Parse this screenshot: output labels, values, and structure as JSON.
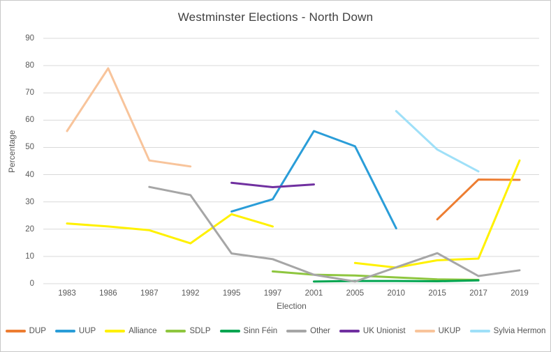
{
  "chart_data": {
    "type": "line",
    "title": "Westminster Elections - North Down",
    "xlabel": "Election",
    "ylabel": "Percentage",
    "ylim": [
      0,
      90
    ],
    "ytick_step": 10,
    "grid": "horizontal",
    "legend_position": "bottom",
    "categories": [
      "1983",
      "1986",
      "1987",
      "1992",
      "1995",
      "1997",
      "2001",
      "2005",
      "2010",
      "2015",
      "2017",
      "2019"
    ],
    "series": [
      {
        "name": "DUP",
        "color": "#ED7D31",
        "values": [
          null,
          null,
          null,
          null,
          null,
          null,
          null,
          null,
          null,
          23.6,
          38.2,
          38.1
        ]
      },
      {
        "name": "UUP",
        "color": "#2A9DD8",
        "values": [
          null,
          null,
          null,
          null,
          26.5,
          31.0,
          56.0,
          50.4,
          20.3,
          null,
          null,
          null
        ]
      },
      {
        "name": "Alliance",
        "color": "#FFF100",
        "values": [
          22.1,
          21.0,
          19.6,
          14.8,
          25.5,
          21.0,
          null,
          7.6,
          5.9,
          8.6,
          9.2,
          45.2
        ]
      },
      {
        "name": "SDLP",
        "color": "#8EC63F",
        "values": [
          null,
          null,
          null,
          null,
          null,
          4.5,
          3.3,
          3.0,
          2.3,
          1.6,
          1.4,
          null
        ]
      },
      {
        "name": "Sinn Féin",
        "color": "#00A551",
        "values": [
          null,
          null,
          null,
          null,
          null,
          null,
          0.8,
          1.0,
          1.0,
          0.9,
          1.2,
          null
        ]
      },
      {
        "name": "Other",
        "color": "#A6A6A6",
        "values": [
          null,
          null,
          35.5,
          32.5,
          11.1,
          9.0,
          3.3,
          0.8,
          6.0,
          11.2,
          2.8,
          4.9
        ]
      },
      {
        "name": "UK Unionist",
        "color": "#7030A0",
        "values": [
          null,
          null,
          null,
          null,
          37.0,
          35.4,
          36.4,
          null,
          null,
          null,
          null,
          null
        ]
      },
      {
        "name": "UKUP",
        "color": "#F8C49B",
        "values": [
          56.0,
          79.0,
          45.2,
          43.0,
          null,
          null,
          null,
          null,
          null,
          null,
          null,
          null
        ]
      },
      {
        "name": "Sylvia Hermon",
        "color": "#9FE0F8",
        "values": [
          null,
          null,
          null,
          null,
          null,
          null,
          null,
          null,
          63.3,
          49.2,
          41.2,
          null
        ]
      }
    ]
  }
}
